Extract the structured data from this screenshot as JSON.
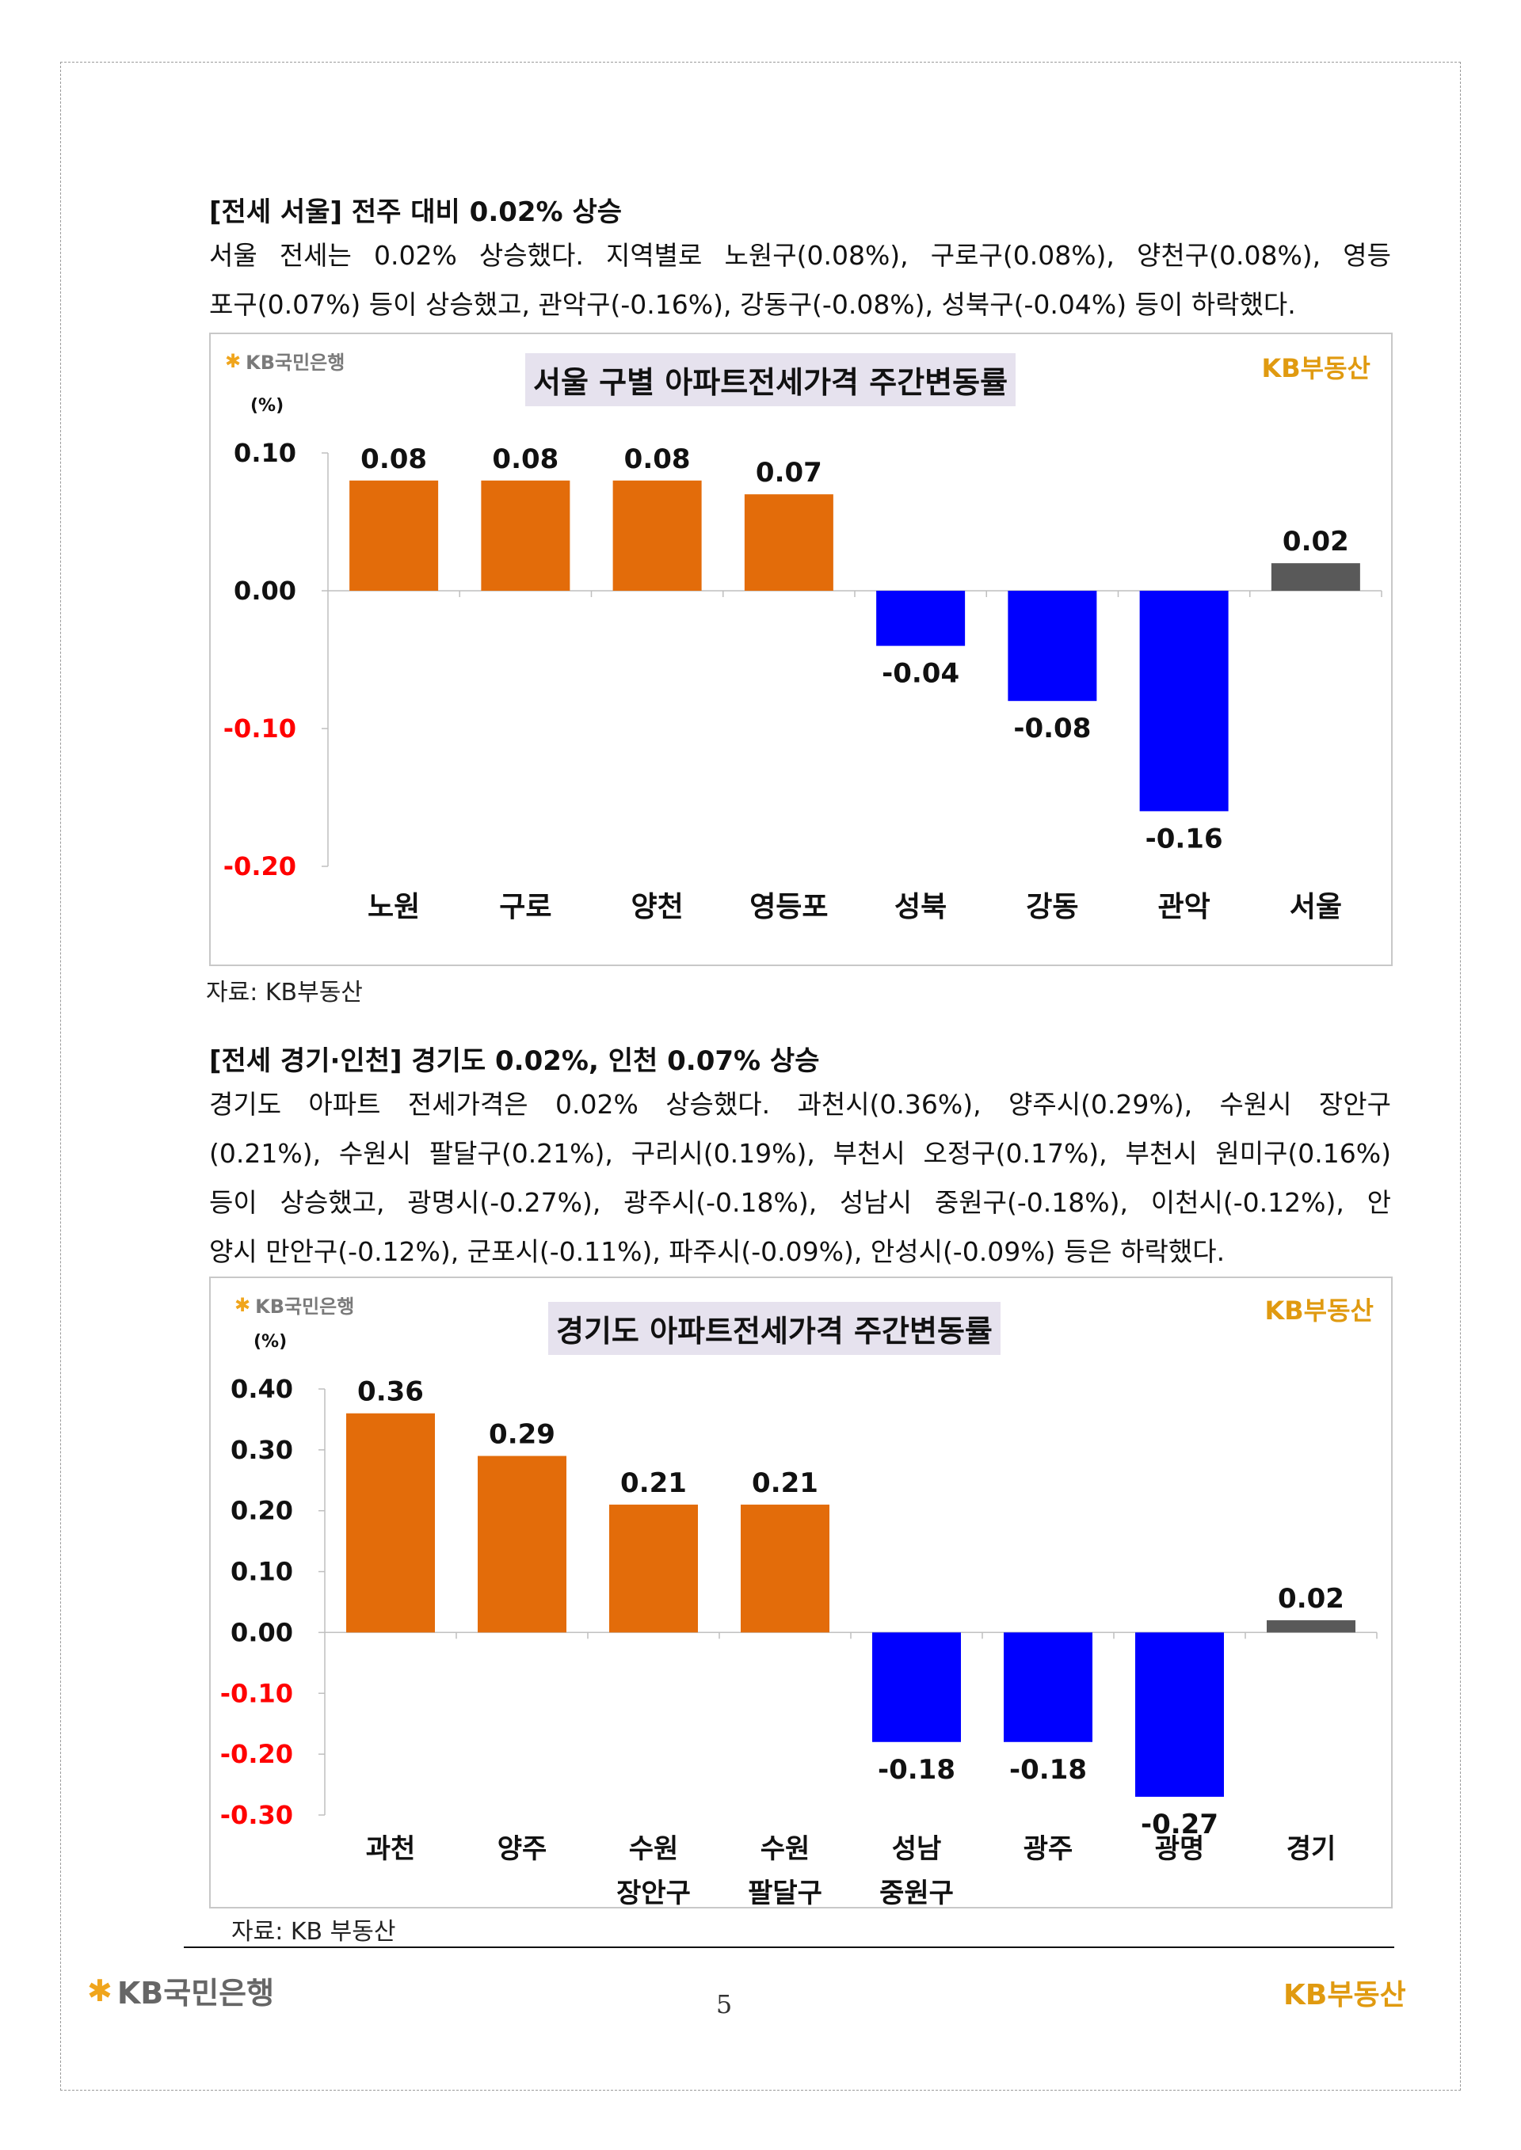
{
  "section1": {
    "heading": "[전세 서울] 전주 대비 0.02% 상승",
    "paragraph_lines": [
      "서울 전세는 0.02% 상승했다. 지역별로 노원구(0.08%), 구로구(0.08%), 양천구(0.08%), 영등",
      "포구(0.07%) 등이 상승했고, 관악구(-0.16%), 강동구(-0.08%), 성북구(-0.04%) 등이 하락했다."
    ],
    "source": "자료: KB부동산"
  },
  "section2": {
    "heading": "[전세 경기·인천] 경기도 0.02%, 인천 0.07% 상승",
    "paragraph_lines": [
      "경기도 아파트 전세가격은 0.02% 상승했다. 과천시(0.36%), 양주시(0.29%), 수원시 장안구",
      "(0.21%), 수원시 팔달구(0.21%), 구리시(0.19%), 부천시 오정구(0.17%), 부천시 원미구(0.16%)",
      "등이 상승했고, 광명시(-0.27%), 광주시(-0.18%), 성남시 중원구(-0.18%), 이천시(-0.12%), 안",
      "양시 만안구(-0.12%), 군포시(-0.11%), 파주시(-0.09%), 안성시(-0.09%) 등은 하락했다."
    ],
    "source": "자료: KB 부동산"
  },
  "logos": {
    "bank_star": "✱",
    "bank_name": "KB국민은행",
    "land_name": "KB부동산"
  },
  "colors": {
    "up": "#e36c0a",
    "down": "#0000ff",
    "total": "#595959",
    "negative_tick": "#ff0000",
    "title_bg": "#e6e2ee"
  },
  "page_number": "5",
  "chart_data": [
    {
      "type": "bar",
      "title": "서울 구별 아파트전세가격 주간변동률",
      "unit": "(%)",
      "categories": [
        [
          "노원"
        ],
        [
          "구로"
        ],
        [
          "양천"
        ],
        [
          "영등포"
        ],
        [
          "성북"
        ],
        [
          "강동"
        ],
        [
          "관악"
        ],
        [
          "서울"
        ]
      ],
      "values": [
        0.08,
        0.08,
        0.08,
        0.07,
        -0.04,
        -0.08,
        -0.16,
        0.02
      ],
      "value_labels": [
        "0.08",
        "0.08",
        "0.08",
        "0.07",
        "-0.04",
        "-0.08",
        "-0.16",
        "0.02"
      ],
      "ylim": [
        -0.2,
        0.1
      ],
      "yticks": [
        0.1,
        0.0,
        -0.1,
        -0.2
      ],
      "ytick_labels": [
        "0.10",
        "0.00",
        "-0.10",
        "-0.20"
      ],
      "total_category_index": 7
    },
    {
      "type": "bar",
      "title": "경기도 아파트전세가격 주간변동률",
      "unit": "(%)",
      "categories": [
        [
          "과천"
        ],
        [
          "양주"
        ],
        [
          "수원",
          "장안구"
        ],
        [
          "수원",
          "팔달구"
        ],
        [
          "성남",
          "중원구"
        ],
        [
          "광주"
        ],
        [
          "광명"
        ],
        [
          "경기"
        ]
      ],
      "values": [
        0.36,
        0.29,
        0.21,
        0.21,
        -0.18,
        -0.18,
        -0.27,
        0.02
      ],
      "value_labels": [
        "0.36",
        "0.29",
        "0.21",
        "0.21",
        "-0.18",
        "-0.18",
        "-0.27",
        "0.02"
      ],
      "ylim": [
        -0.3,
        0.4
      ],
      "yticks": [
        0.4,
        0.3,
        0.2,
        0.1,
        0.0,
        -0.1,
        -0.2,
        -0.3
      ],
      "ytick_labels": [
        "0.40",
        "0.30",
        "0.20",
        "0.10",
        "0.00",
        "-0.10",
        "-0.20",
        "-0.30"
      ],
      "total_category_index": 7
    }
  ]
}
